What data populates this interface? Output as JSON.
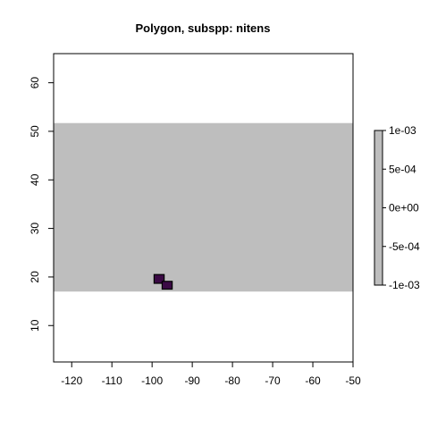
{
  "title": "Polygon, subspp: nitens",
  "colors": {
    "range_fill": "#bebebe",
    "polygon_fill": "#3b0a45",
    "polygon_stroke": "#000000",
    "frame": "#000000"
  },
  "chart_data": {
    "type": "map",
    "title": "Polygon, subspp: nitens",
    "xlim": [
      -124.5,
      -50
    ],
    "ylim": [
      2.5,
      66
    ],
    "x_ticks": [
      -120,
      -110,
      -100,
      -90,
      -80,
      -70,
      -60,
      -50
    ],
    "y_ticks": [
      10,
      20,
      30,
      40,
      50,
      60
    ],
    "x_tick_labels": [
      "-120",
      "-110",
      "-100",
      "-90",
      "-80",
      "-70",
      "-60",
      "-50"
    ],
    "y_tick_labels": [
      "10",
      "20",
      "30",
      "40",
      "50",
      "60"
    ],
    "raster_extent": {
      "xmin": -124.5,
      "xmax": -50,
      "ymin": 17,
      "ymax": 51.7
    },
    "polygon_cells": [
      {
        "x0": -99.5,
        "x1": -97,
        "y0": 18.7,
        "y1": 20.5
      },
      {
        "x0": -97.5,
        "x1": -95,
        "y0": 17.5,
        "y1": 19.1
      }
    ],
    "legend": {
      "position": "right",
      "range": [
        -0.001,
        0.001
      ],
      "ticks": [
        0.001,
        0.0005,
        0,
        -0.0005,
        -0.001
      ],
      "tick_labels": [
        "1e-03",
        "5e-04",
        "0e+00",
        "-5e-04",
        "-1e-03"
      ]
    }
  }
}
